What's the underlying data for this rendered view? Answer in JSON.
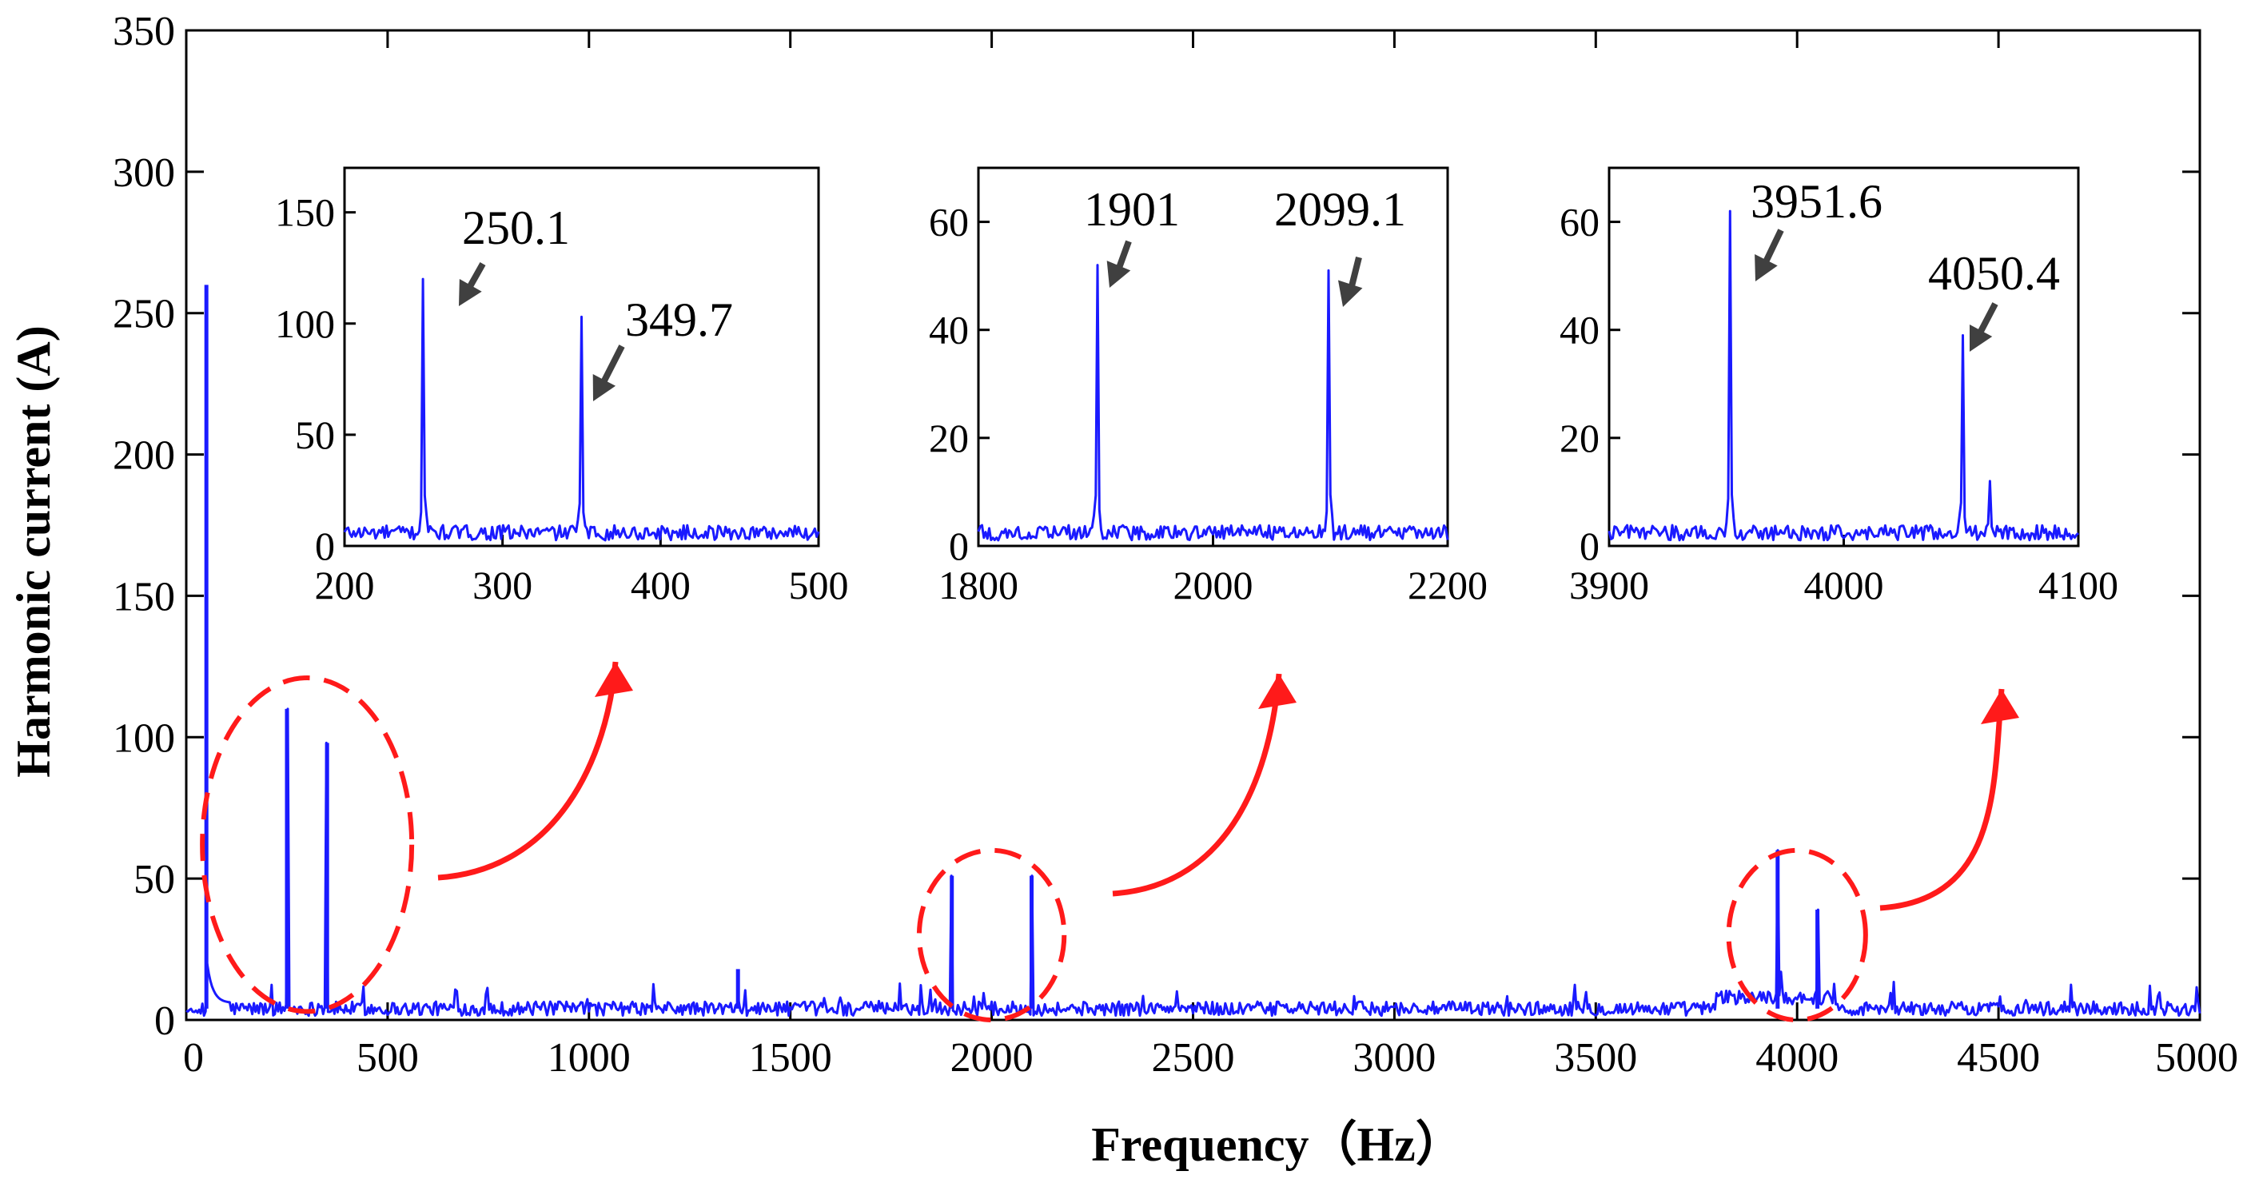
{
  "chart_data": {
    "type": "line",
    "xlabel": "Frequency（Hz）",
    "ylabel": "Harmonic current (A)",
    "xlim": [
      0,
      5000
    ],
    "ylim": [
      0,
      350
    ],
    "xticks": [
      0,
      500,
      1000,
      1500,
      2000,
      2500,
      3000,
      3500,
      4000,
      4500,
      5000
    ],
    "yticks": [
      0,
      50,
      100,
      150,
      200,
      250,
      300,
      350
    ],
    "series_color": "#1a1aff",
    "highlight_color": "#ff1a1a",
    "annotation_arrow_color": "#404040",
    "noise_floor": 4,
    "main_peaks": [
      {
        "x": 50,
        "y": 260
      },
      {
        "x": 250.1,
        "y": 110
      },
      {
        "x": 349.7,
        "y": 98
      },
      {
        "x": 1370,
        "y": 18
      },
      {
        "x": 1901,
        "y": 51
      },
      {
        "x": 2099.1,
        "y": 51
      },
      {
        "x": 3951.6,
        "y": 60
      },
      {
        "x": 4050.4,
        "y": 39
      }
    ],
    "highlight_regions": [
      {
        "center_x": 300,
        "center_y": 62,
        "width_x": 520,
        "height_y": 118
      },
      {
        "center_x": 2000,
        "center_y": 30,
        "width_x": 360,
        "height_y": 60
      },
      {
        "center_x": 4000,
        "center_y": 30,
        "width_x": 340,
        "height_y": 60
      }
    ],
    "insets": [
      {
        "xlim": [
          200,
          500
        ],
        "ylim": [
          0,
          170
        ],
        "xticks": [
          200,
          300,
          400,
          500
        ],
        "yticks": [
          0,
          50,
          100,
          150
        ],
        "peaks": [
          {
            "x": 250.1,
            "y": 120,
            "label": "250.1"
          },
          {
            "x": 349.7,
            "y": 103,
            "label": "349.7"
          }
        ]
      },
      {
        "xlim": [
          1800,
          2200
        ],
        "ylim": [
          0,
          70
        ],
        "xticks": [
          1800,
          2000,
          2200
        ],
        "yticks": [
          0,
          20,
          40,
          60
        ],
        "peaks": [
          {
            "x": 1901,
            "y": 52,
            "label": "1901"
          },
          {
            "x": 2099.1,
            "y": 51,
            "label": "2099.1"
          }
        ]
      },
      {
        "xlim": [
          3900,
          4100
        ],
        "ylim": [
          0,
          70
        ],
        "xticks": [
          3900,
          4000,
          4100
        ],
        "yticks": [
          0,
          20,
          40,
          60
        ],
        "peaks": [
          {
            "x": 3951.6,
            "y": 62,
            "label": "3951.6"
          },
          {
            "x": 4050.4,
            "y": 39,
            "label": "4050.4"
          },
          {
            "x": 4062,
            "y": 12
          }
        ]
      }
    ]
  }
}
